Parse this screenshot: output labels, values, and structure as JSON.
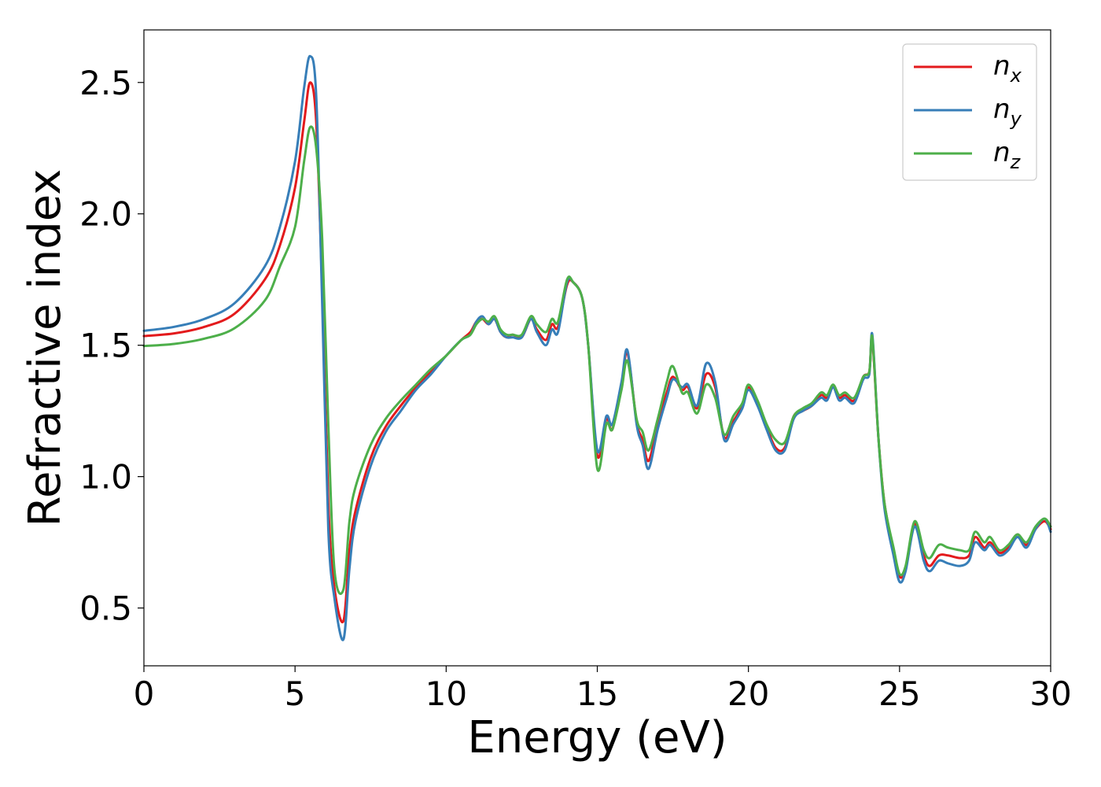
{
  "chart_data": {
    "type": "line",
    "xlabel": "Energy (eV)",
    "ylabel": "Refractive index",
    "xlim": [
      0,
      30
    ],
    "ylim": [
      0.28,
      2.7
    ],
    "xticks": [
      0,
      5,
      10,
      15,
      20,
      25,
      30
    ],
    "xtick_labels": [
      "0",
      "5",
      "10",
      "15",
      "20",
      "25",
      "30"
    ],
    "yticks": [
      0.5,
      1.0,
      1.5,
      2.0,
      2.5
    ],
    "ytick_labels": [
      "0.5",
      "1.0",
      "1.5",
      "2.0",
      "2.5"
    ],
    "grid": false,
    "legend_position": "top-right",
    "x": [
      0,
      1,
      2,
      3,
      4,
      4.5,
      5,
      5.3,
      5.5,
      5.7,
      5.9,
      6.1,
      6.3,
      6.6,
      6.8,
      7.0,
      7.5,
      8.0,
      8.5,
      9.0,
      9.5,
      10.0,
      10.5,
      10.8,
      11.0,
      11.2,
      11.4,
      11.6,
      11.8,
      12.0,
      12.2,
      12.5,
      12.8,
      13.0,
      13.3,
      13.5,
      13.7,
      14.0,
      14.2,
      14.5,
      14.7,
      15.0,
      15.3,
      15.5,
      15.8,
      16.0,
      16.3,
      16.5,
      16.7,
      17.0,
      17.3,
      17.5,
      17.8,
      18.0,
      18.3,
      18.6,
      18.9,
      19.2,
      19.5,
      19.8,
      20.0,
      20.3,
      20.6,
      20.9,
      21.2,
      21.5,
      21.8,
      22.1,
      22.4,
      22.6,
      22.8,
      23.0,
      23.2,
      23.5,
      23.8,
      24.0,
      24.1,
      24.3,
      24.5,
      24.8,
      25.0,
      25.2,
      25.5,
      25.8,
      26.0,
      26.3,
      26.6,
      27.0,
      27.3,
      27.5,
      27.8,
      28.0,
      28.3,
      28.6,
      28.9,
      29.2,
      29.5,
      29.8,
      30.0
    ],
    "series": [
      {
        "name": "n_x",
        "label_main": "n",
        "label_sub": "x",
        "color": "#e31a1c",
        "y": [
          1.535,
          1.545,
          1.57,
          1.62,
          1.75,
          1.88,
          2.1,
          2.35,
          2.5,
          2.35,
          1.7,
          0.9,
          0.58,
          0.45,
          0.72,
          0.87,
          1.07,
          1.19,
          1.27,
          1.34,
          1.4,
          1.46,
          1.52,
          1.55,
          1.59,
          1.6,
          1.58,
          1.6,
          1.55,
          1.53,
          1.54,
          1.53,
          1.6,
          1.56,
          1.52,
          1.58,
          1.57,
          1.73,
          1.74,
          1.68,
          1.5,
          1.08,
          1.22,
          1.18,
          1.35,
          1.47,
          1.21,
          1.14,
          1.06,
          1.2,
          1.32,
          1.38,
          1.33,
          1.34,
          1.26,
          1.39,
          1.34,
          1.15,
          1.21,
          1.27,
          1.34,
          1.28,
          1.19,
          1.11,
          1.11,
          1.23,
          1.25,
          1.27,
          1.31,
          1.3,
          1.34,
          1.3,
          1.31,
          1.29,
          1.38,
          1.4,
          1.52,
          1.15,
          0.9,
          0.72,
          0.62,
          0.65,
          0.82,
          0.7,
          0.66,
          0.7,
          0.7,
          0.69,
          0.7,
          0.77,
          0.73,
          0.75,
          0.71,
          0.73,
          0.78,
          0.74,
          0.8,
          0.83,
          0.8
        ]
      },
      {
        "name": "n_y",
        "label_main": "n",
        "label_sub": "y",
        "color": "#377eb8",
        "y": [
          1.555,
          1.57,
          1.6,
          1.66,
          1.8,
          1.95,
          2.2,
          2.48,
          2.6,
          2.45,
          1.65,
          0.8,
          0.54,
          0.38,
          0.65,
          0.83,
          1.04,
          1.17,
          1.25,
          1.33,
          1.39,
          1.46,
          1.52,
          1.54,
          1.59,
          1.61,
          1.58,
          1.6,
          1.55,
          1.53,
          1.53,
          1.53,
          1.6,
          1.55,
          1.5,
          1.56,
          1.55,
          1.74,
          1.74,
          1.68,
          1.5,
          1.1,
          1.23,
          1.2,
          1.36,
          1.48,
          1.2,
          1.12,
          1.03,
          1.18,
          1.3,
          1.37,
          1.34,
          1.35,
          1.27,
          1.43,
          1.36,
          1.14,
          1.2,
          1.26,
          1.33,
          1.27,
          1.18,
          1.1,
          1.1,
          1.22,
          1.25,
          1.27,
          1.3,
          1.29,
          1.34,
          1.29,
          1.3,
          1.28,
          1.37,
          1.39,
          1.54,
          1.15,
          0.88,
          0.7,
          0.6,
          0.64,
          0.81,
          0.68,
          0.64,
          0.68,
          0.67,
          0.66,
          0.68,
          0.75,
          0.72,
          0.74,
          0.7,
          0.72,
          0.77,
          0.73,
          0.8,
          0.84,
          0.79
        ]
      },
      {
        "name": "n_z",
        "label_main": "n",
        "label_sub": "z",
        "color": "#4daf4a",
        "y": [
          1.497,
          1.505,
          1.525,
          1.565,
          1.67,
          1.8,
          1.95,
          2.2,
          2.33,
          2.25,
          1.9,
          1.2,
          0.65,
          0.57,
          0.83,
          0.96,
          1.12,
          1.22,
          1.29,
          1.35,
          1.41,
          1.46,
          1.52,
          1.54,
          1.58,
          1.6,
          1.59,
          1.61,
          1.56,
          1.54,
          1.54,
          1.54,
          1.61,
          1.58,
          1.55,
          1.6,
          1.59,
          1.75,
          1.74,
          1.68,
          1.5,
          1.03,
          1.2,
          1.18,
          1.33,
          1.44,
          1.22,
          1.17,
          1.1,
          1.22,
          1.36,
          1.42,
          1.32,
          1.32,
          1.24,
          1.35,
          1.3,
          1.16,
          1.23,
          1.28,
          1.35,
          1.29,
          1.2,
          1.14,
          1.13,
          1.23,
          1.26,
          1.28,
          1.32,
          1.31,
          1.35,
          1.31,
          1.32,
          1.3,
          1.38,
          1.4,
          1.53,
          1.15,
          0.9,
          0.73,
          0.63,
          0.66,
          0.83,
          0.72,
          0.69,
          0.74,
          0.73,
          0.72,
          0.72,
          0.79,
          0.75,
          0.77,
          0.72,
          0.74,
          0.78,
          0.75,
          0.81,
          0.84,
          0.81
        ]
      }
    ]
  }
}
